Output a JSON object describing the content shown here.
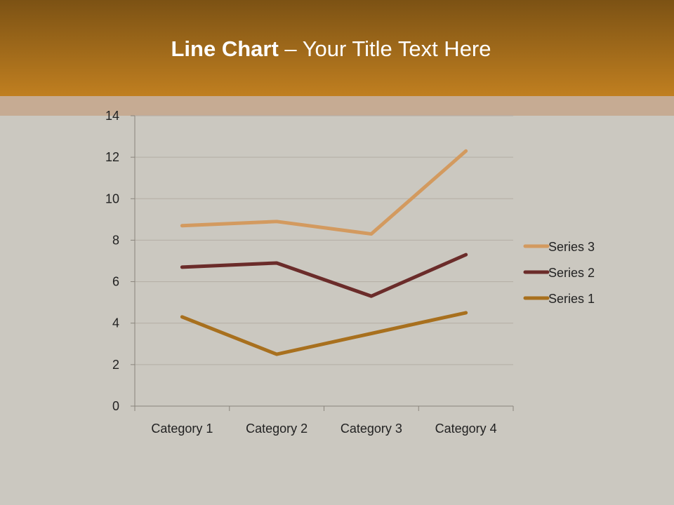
{
  "title": {
    "bold": "Line Chart",
    "rest": " – Your Title Text Here"
  },
  "chart_data": {
    "type": "line",
    "stacked": true,
    "categories": [
      "Category 1",
      "Category 2",
      "Category 3",
      "Category 4"
    ],
    "series": [
      {
        "name": "Series 1",
        "values": [
          4.3,
          2.5,
          3.5,
          4.5
        ],
        "color": "#a8701e"
      },
      {
        "name": "Series 2",
        "values": [
          2.4,
          4.4,
          1.8,
          2.8
        ],
        "color": "#6b2c2a"
      },
      {
        "name": "Series 3",
        "values": [
          2,
          2,
          3,
          5
        ],
        "color": "#d39a5f"
      }
    ],
    "ylim": [
      0,
      14
    ],
    "yticks": [
      0,
      2,
      4,
      6,
      8,
      10,
      12,
      14
    ],
    "grid": true,
    "legend": "right"
  }
}
